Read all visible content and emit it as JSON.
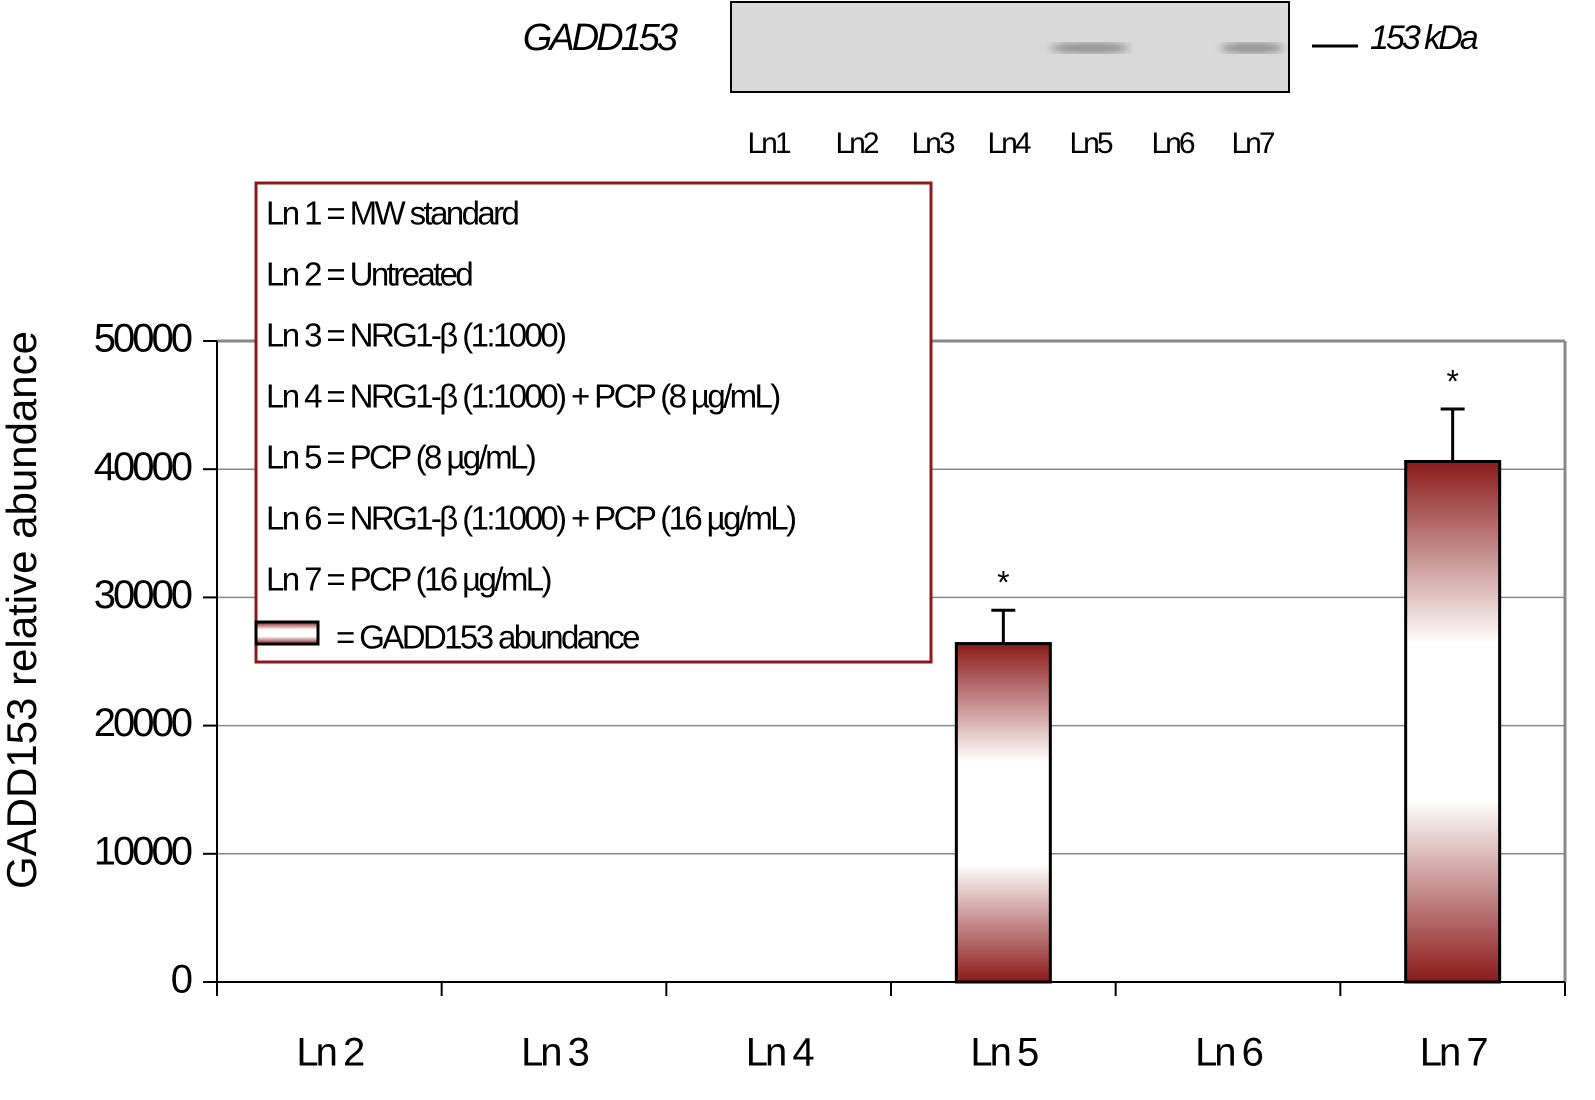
{
  "chart_data": {
    "type": "bar",
    "ylabel": "GADD153 relative abundance",
    "categories": [
      "Ln 2",
      "Ln 3",
      "Ln 4",
      "Ln 5",
      "Ln 6",
      "Ln 7"
    ],
    "series": [
      {
        "name": "= GADD153 abundance",
        "color": "#8b1a1a",
        "values": [
          0,
          0,
          0,
          26400,
          0,
          40600
        ],
        "errors": [
          null,
          null,
          null,
          2600,
          null,
          4100
        ]
      }
    ],
    "annotations": [
      null,
      null,
      null,
      "*",
      null,
      "*"
    ],
    "ylim": [
      0,
      50000
    ],
    "yticks": [
      0,
      10000,
      20000,
      30000,
      40000,
      50000
    ],
    "grid": true,
    "legend_lines": [
      "Ln 1 = MW standard",
      "Ln 2 = Untreated",
      "Ln 3 = NRG1-β (1:1000)",
      "Ln 4 = NRG1-β (1:1000) + PCP (8 µg/mL)",
      "Ln 5 = PCP (8 µg/mL)",
      "Ln 6 = NRG1-β (1:1000) + PCP (16 µg/mL)",
      "Ln 7 = PCP (16 µg/mL)"
    ],
    "blot": {
      "label": "GADD153",
      "marker": "153 kDa",
      "lanes": [
        "Ln1",
        "Ln2",
        "Ln3",
        "Ln4",
        "Ln5",
        "Ln6",
        "Ln7"
      ]
    }
  }
}
